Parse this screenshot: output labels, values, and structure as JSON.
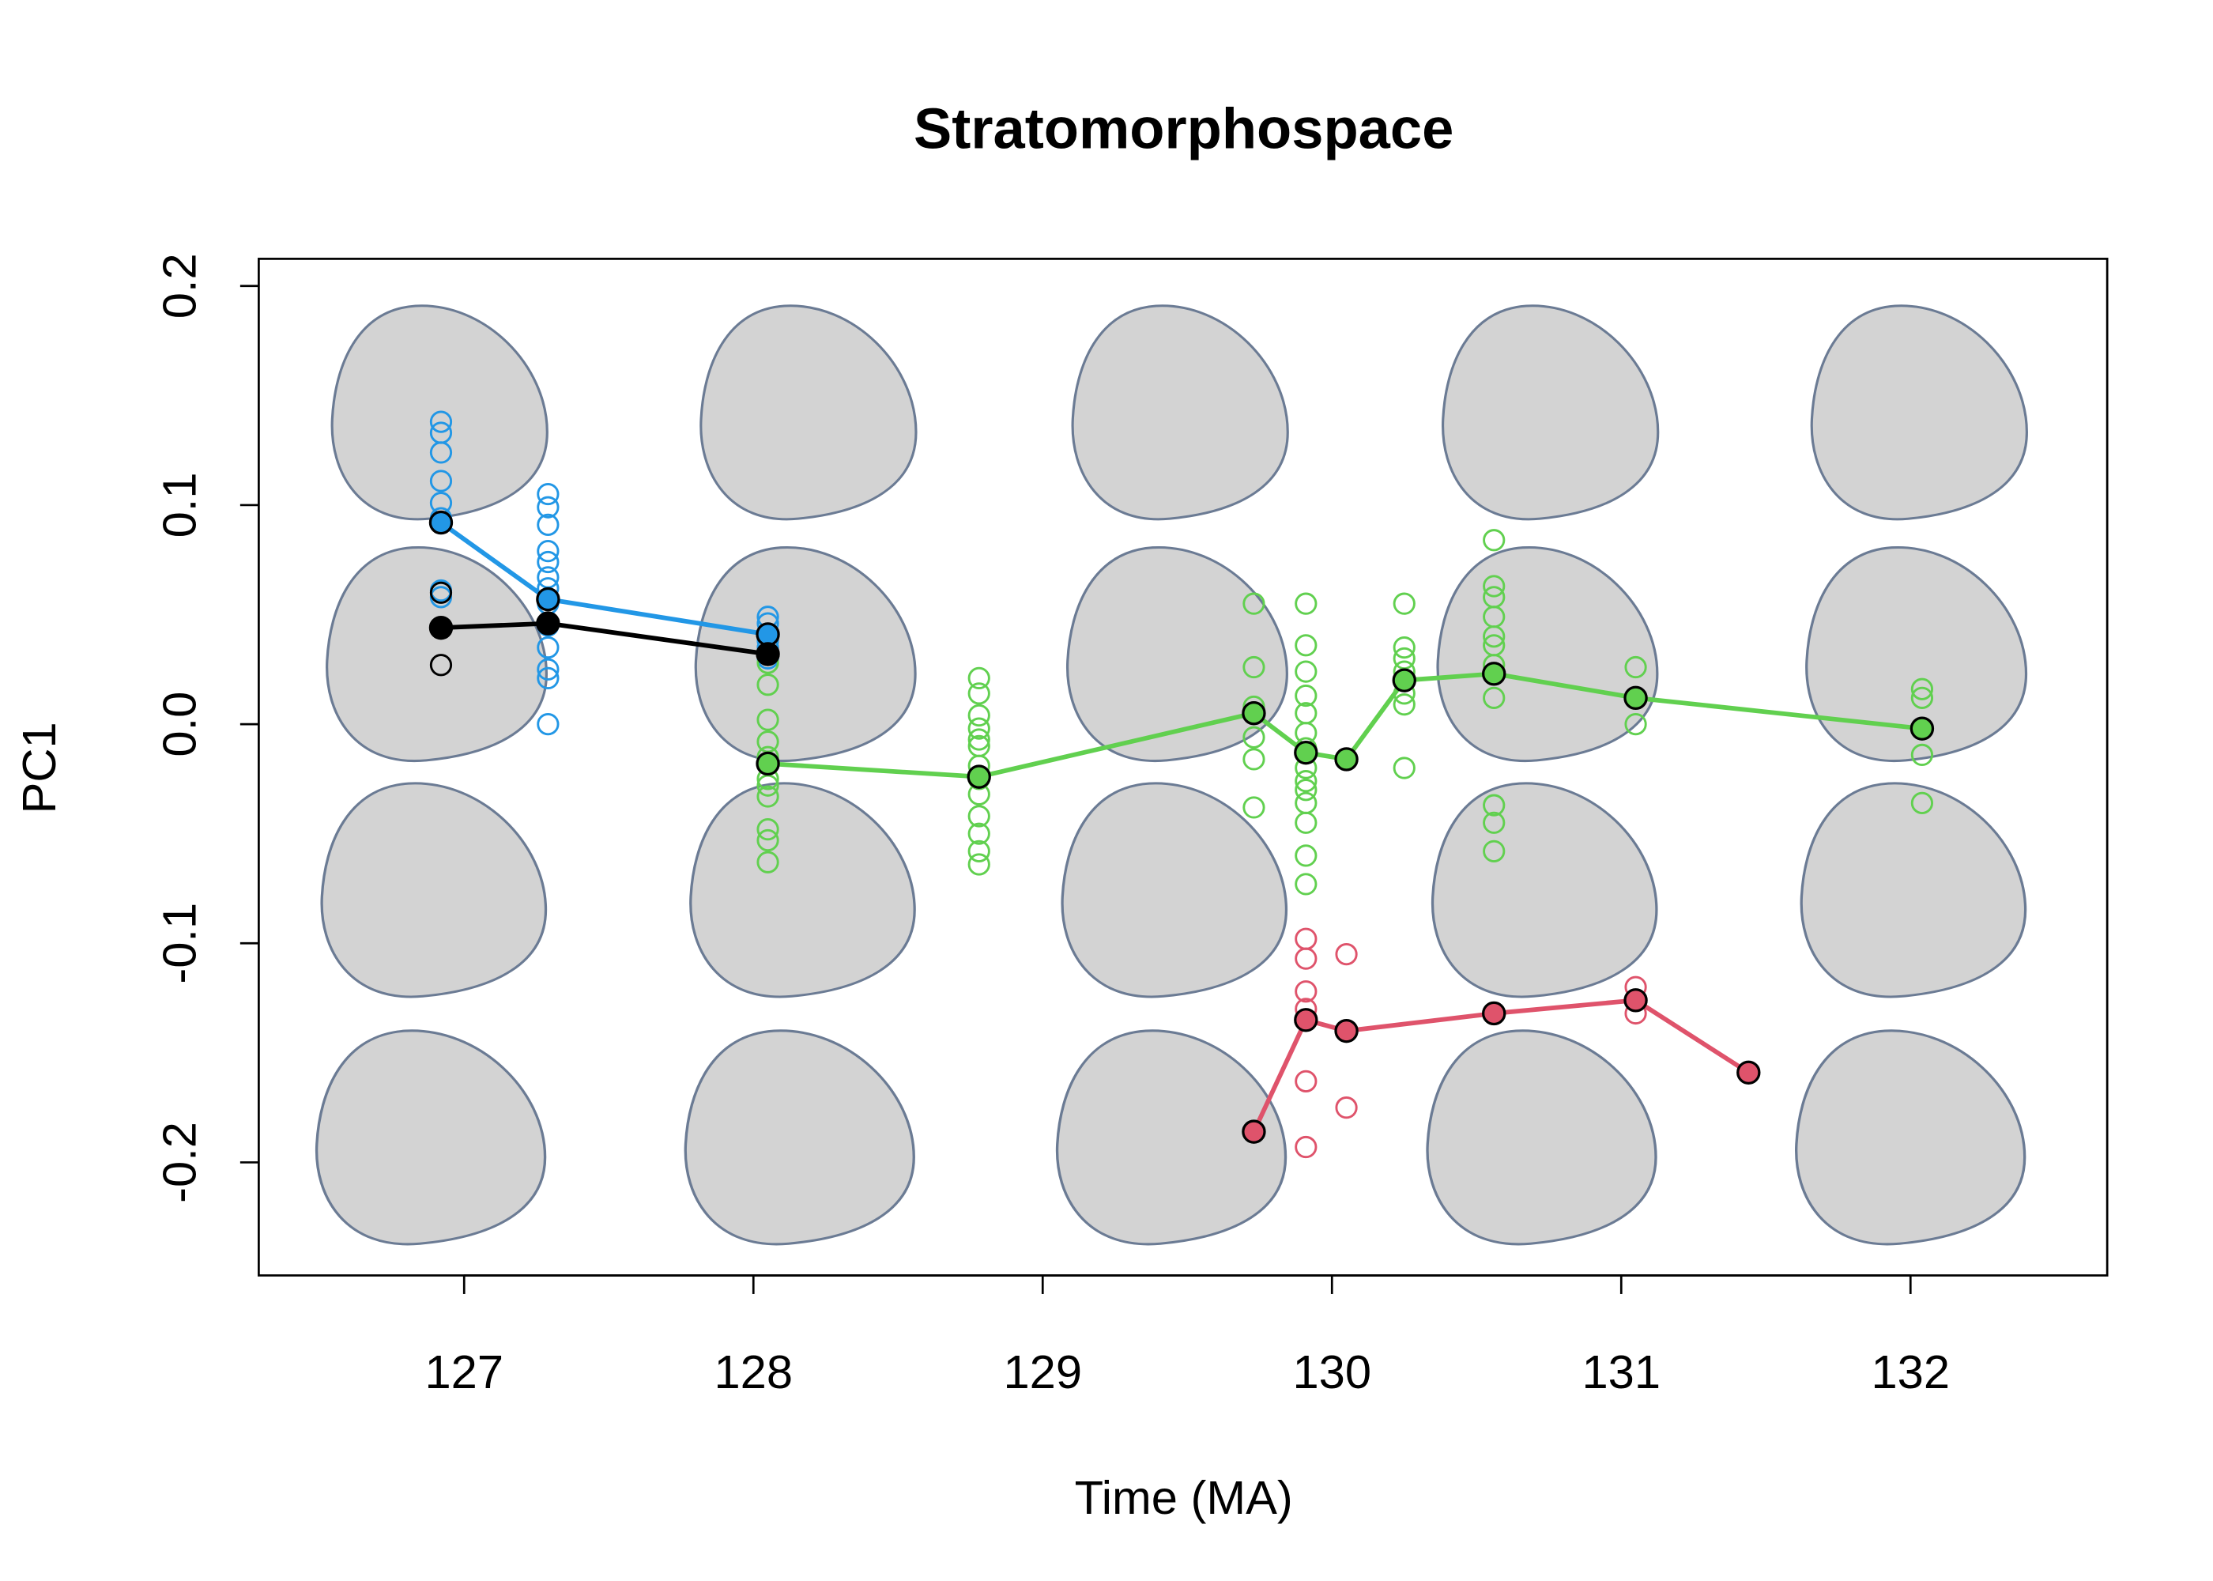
{
  "chart_data": {
    "type": "scatter",
    "title": "Stratomorphospace",
    "x_label": "Time (MA)",
    "y_label": "PC1",
    "xlim": [
      126.29,
      132.68
    ],
    "ylim": [
      -0.2516,
      0.2124
    ],
    "xticks": [
      127,
      128,
      129,
      130,
      131,
      132
    ],
    "yticks": [
      -0.2,
      -0.1,
      {
        "value": 0,
        "label": "0.0"
      },
      0.1,
      0.2
    ],
    "series": [
      {
        "color": "#2297e6",
        "x": [
          126.92,
          127.29,
          128.05
        ],
        "values": [
          0.092,
          0.057,
          0.041
        ]
      },
      {
        "color": "#000000",
        "x": [
          126.92,
          127.29,
          128.05
        ],
        "values": [
          0.044,
          0.046,
          0.032
        ]
      },
      {
        "color": "#61d04f",
        "x": [
          128.05,
          128.78,
          129.73,
          129.91,
          130.05,
          130.25,
          130.56,
          131.05,
          132.04
        ],
        "values": [
          -0.018,
          -0.024,
          0.005,
          -0.013,
          -0.016,
          0.02,
          0.023,
          0.012,
          -0.002
        ]
      },
      {
        "color": "#df536b",
        "x": [
          129.73,
          129.91,
          130.05,
          130.56,
          131.05,
          131.44
        ],
        "values": [
          -0.186,
          -0.135,
          -0.14,
          -0.132,
          -0.126,
          -0.159
        ]
      }
    ],
    "points": [
      {
        "color": "#2297e6",
        "x": [
          126.92,
          126.92,
          126.92,
          126.92,
          126.92,
          126.92,
          126.92,
          126.92,
          127.29,
          127.29,
          127.29,
          127.29,
          127.29,
          127.29,
          127.29,
          127.29,
          127.29,
          127.29,
          127.29,
          127.29,
          127.29,
          128.05,
          128.05,
          128.05,
          128.05,
          128.05,
          128.05
        ],
        "values": [
          0.138,
          0.133,
          0.124,
          0.111,
          0.101,
          0.094,
          0.061,
          0.058,
          0.105,
          0.099,
          0.091,
          0.079,
          0.074,
          0.067,
          0.062,
          0.055,
          0.045,
          0.035,
          0.025,
          0.021,
          0.0,
          0.049,
          0.046,
          0.041,
          0.038,
          0.035,
          0.03
        ]
      },
      {
        "color": "#000000",
        "x": [
          126.92,
          126.92
        ],
        "values": [
          0.06,
          0.027
        ]
      },
      {
        "color": "#61d04f",
        "x": [
          128.05,
          128.05,
          128.05,
          128.05,
          128.05,
          128.05,
          128.05,
          128.05,
          128.05,
          128.05,
          128.05,
          128.78,
          128.78,
          128.78,
          128.78,
          128.78,
          128.78,
          128.78,
          128.78,
          128.78,
          128.78,
          128.78,
          128.78,
          128.78,
          129.73,
          129.73,
          129.73,
          129.73,
          129.73,
          129.73,
          129.91,
          129.91,
          129.91,
          129.91,
          129.91,
          129.91,
          129.91,
          129.91,
          129.91,
          129.91,
          129.91,
          129.91,
          129.91,
          129.91,
          130.25,
          130.25,
          130.25,
          130.25,
          130.25,
          130.25,
          130.25,
          130.56,
          130.56,
          130.56,
          130.56,
          130.56,
          130.56,
          130.56,
          130.56,
          130.56,
          130.56,
          130.56,
          131.05,
          131.05,
          132.04,
          132.04,
          132.04,
          132.04
        ],
        "values": [
          0.028,
          0.018,
          0.002,
          -0.008,
          -0.015,
          -0.025,
          -0.028,
          -0.033,
          -0.048,
          -0.053,
          -0.063,
          0.021,
          0.014,
          0.004,
          -0.002,
          -0.007,
          -0.01,
          -0.019,
          -0.025,
          -0.032,
          -0.042,
          -0.05,
          -0.058,
          -0.064,
          0.055,
          0.026,
          0.008,
          -0.006,
          -0.016,
          -0.038,
          0.055,
          0.036,
          0.024,
          0.013,
          0.005,
          -0.004,
          -0.011,
          -0.02,
          -0.026,
          -0.03,
          -0.036,
          -0.045,
          -0.06,
          -0.073,
          0.055,
          0.035,
          0.03,
          0.024,
          0.014,
          0.009,
          -0.02,
          0.084,
          0.063,
          0.058,
          0.049,
          0.04,
          0.036,
          0.027,
          0.012,
          -0.037,
          -0.045,
          -0.058,
          0.026,
          0.0,
          0.016,
          0.012,
          -0.014,
          -0.036
        ]
      },
      {
        "color": "#df536b",
        "x": [
          129.91,
          129.91,
          129.91,
          129.91,
          129.91,
          129.91,
          130.05,
          130.05,
          131.05,
          131.05
        ],
        "values": [
          -0.098,
          -0.107,
          -0.122,
          -0.13,
          -0.163,
          -0.193,
          -0.105,
          -0.175,
          -0.12,
          -0.132
        ]
      }
    ]
  }
}
